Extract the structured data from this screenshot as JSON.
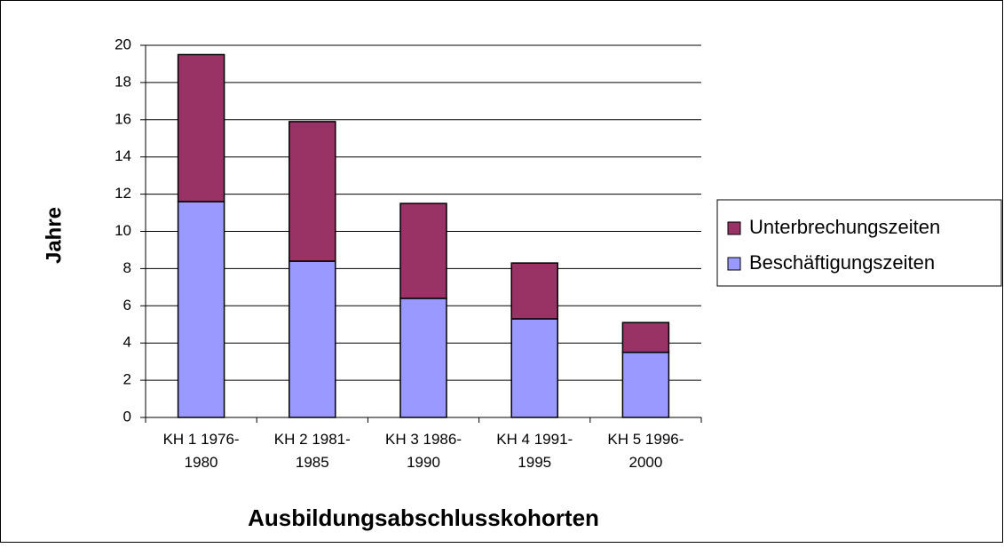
{
  "chart_data": {
    "type": "stacked_bar",
    "x_label": "Ausbildungsabschlusskohorten",
    "y_label": "Jahre",
    "categories": [
      "KH 1 1976-1980",
      "KH 2 1981-1985",
      "KH 3 1986-1990",
      "KH 4 1991-1995",
      "KH 5 1996-2000"
    ],
    "series": [
      {
        "name": "Beschäftigungszeiten",
        "color": "#9999ff",
        "values": [
          11.6,
          8.4,
          6.4,
          5.3,
          3.5
        ]
      },
      {
        "name": "Unterbrechungszeiten",
        "color": "#993366",
        "values": [
          7.9,
          7.5,
          5.1,
          3.0,
          1.6
        ]
      }
    ],
    "ylim": [
      0,
      20
    ],
    "yticks": [
      0,
      2,
      4,
      6,
      8,
      10,
      12,
      14,
      16,
      18,
      20
    ],
    "grid": true,
    "legend": "right"
  }
}
